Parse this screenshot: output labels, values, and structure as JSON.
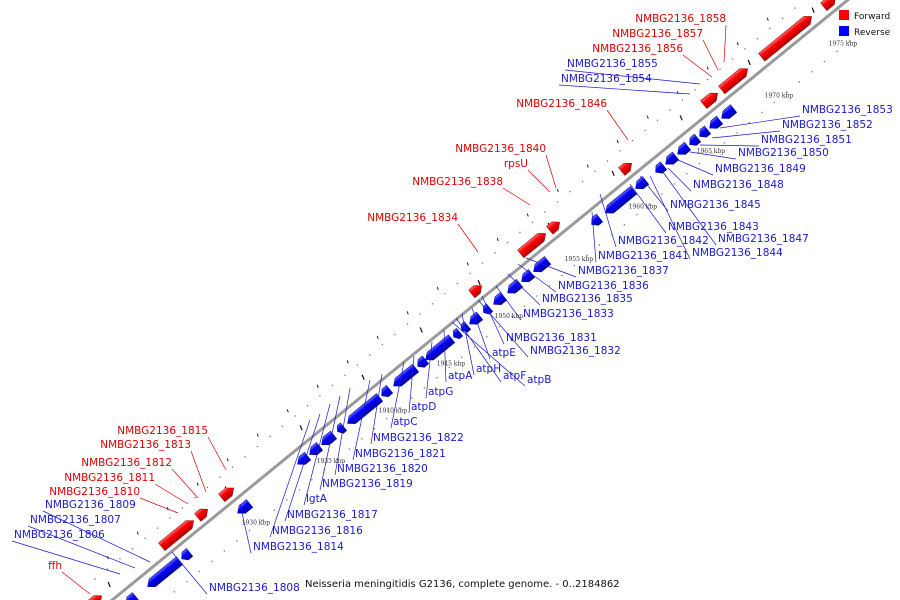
{
  "caption": "Neisseria meningitidis G2136, complete genome. - 0..2184862",
  "legend": {
    "forward_label": "Forward",
    "reverse_label": "Reverse",
    "forward_color": "#ff0000",
    "reverse_color": "#0000ff"
  },
  "colors": {
    "forward": "#ff0000",
    "reverse": "#0000ff",
    "backbone": "#999999"
  },
  "ticks": [
    "1925 kbp",
    "1930 kbp",
    "1935 kbp",
    "1940 kbp",
    "1945 kbp",
    "1950 kbp",
    "1955 kbp",
    "1960 kbp",
    "1965 kbp",
    "1970 kbp",
    "1975 kbp"
  ],
  "forward_labels": [
    "NMBG2136_1858",
    "NMBG2136_1857",
    "NMBG2136_1856",
    "NMBG2136_1846",
    "NMBG2136_1840",
    "rpsU",
    "NMBG2136_1838",
    "NMBG2136_1834",
    "NMBG2136_1815",
    "NMBG2136_1813",
    "NMBG2136_1812",
    "NMBG2136_1811",
    "NMBG2136_1810",
    "ffh"
  ],
  "reverse_labels": [
    "NMBG2136_1855",
    "NMBG2136_1854",
    "NMBG2136_1853",
    "NMBG2136_1852",
    "NMBG2136_1851",
    "NMBG2136_1850",
    "NMBG2136_1849",
    "NMBG2136_1848",
    "NMBG2136_1845",
    "NMBG2136_1843",
    "NMBG2136_1842",
    "NMBG2136_1841",
    "NMBG2136_1847",
    "NMBG2136_1844",
    "NMBG2136_1837",
    "NMBG2136_1836",
    "NMBG2136_1835",
    "NMBG2136_1833",
    "NMBG2136_1831",
    "NMBG2136_1832",
    "atpE",
    "atpH",
    "atpF",
    "atpB",
    "atpA",
    "atpG",
    "atpD",
    "atpC",
    "NMBG2136_1822",
    "NMBG2136_1821",
    "NMBG2136_1820",
    "NMBG2136_1819",
    "lgtA",
    "NMBG2136_1817",
    "NMBG2136_1816",
    "NMBG2136_1814",
    "NMBG2136_1809",
    "NMBG2136_1807",
    "NMBG2136_1806",
    "NMBG2136_1808"
  ]
}
